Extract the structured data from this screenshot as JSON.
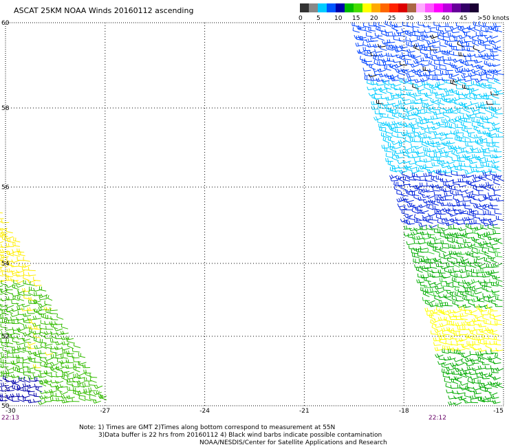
{
  "title": "ASCAT 25KM NOAA Winds 20160112 ascending",
  "colorbar": {
    "colors": [
      "#333333",
      "#888888",
      "#00ccff",
      "#0055ff",
      "#0000aa",
      "#00bb00",
      "#44dd00",
      "#ffff00",
      "#ffaa00",
      "#ff6600",
      "#ff2200",
      "#dd0000",
      "#aa6644",
      "#ffaaff",
      "#ff55ff",
      "#ff00ff",
      "#bb00dd",
      "#660099",
      "#330066",
      "#1a0033"
    ],
    "labels": [
      "0",
      "5",
      "10",
      "15",
      "20",
      "25",
      "30",
      "35",
      "40",
      "45",
      ">50 knots"
    ]
  },
  "lat_labels": [
    "60",
    "58",
    "56",
    "54",
    "52",
    "50"
  ],
  "lon_labels": [
    "-30",
    "-27",
    "-24",
    "-21",
    "-18",
    "-15"
  ],
  "time_labels": [
    "22:13",
    "22:12"
  ],
  "notes": [
    "Note: 1) Times are GMT 2)Times along bottom correspond to measurement at 55N",
    "3)Data buffer is 22 hrs from 20160112 4) Black wind barbs indicate possible contamination",
    "NOAA/NESDIS/Center for Satellite Applications and Research"
  ],
  "swaths": [
    {
      "name": "east-swath",
      "regions": [
        {
          "lat": [
            58.0,
            60.0
          ],
          "color": "#22cc22"
        },
        {
          "lat": [
            58.6,
            60.0
          ],
          "color": "#0044ff"
        },
        {
          "lat": [
            55.7,
            58.6
          ],
          "color": "#00ccff"
        },
        {
          "lat": [
            55.0,
            56.3
          ],
          "color": "#0022dd"
        },
        {
          "lat": [
            50.0,
            55.0
          ],
          "color": "#00aa00"
        },
        {
          "lat": [
            51.5,
            52.8
          ],
          "color": "#ffff00"
        }
      ]
    },
    {
      "name": "west-swath",
      "regions": [
        {
          "lat": [
            50.0,
            55.0
          ],
          "color": "#33bb00"
        },
        {
          "lat": [
            53.4,
            55.8
          ],
          "color": "#ffee00"
        },
        {
          "lat": [
            50.0,
            50.8
          ],
          "color": "#0000aa"
        }
      ]
    }
  ]
}
